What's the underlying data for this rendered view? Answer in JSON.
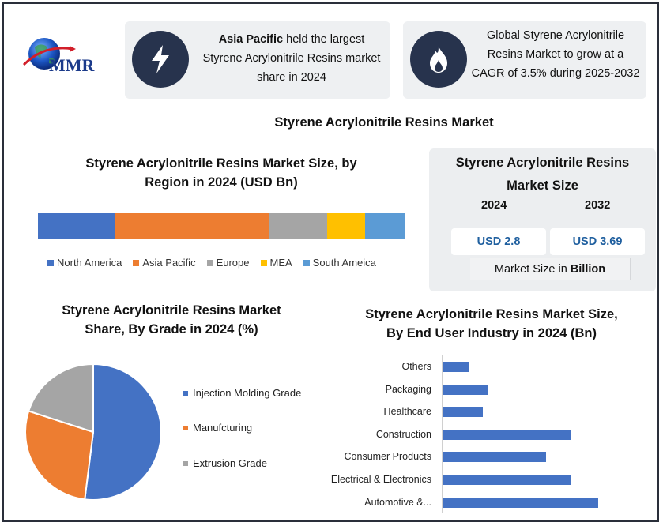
{
  "brand": {
    "logo_text": "MMR"
  },
  "cards": {
    "region_highlight": {
      "bold": "Asia Pacific",
      "rest": " held the largest Styrene Acrylonitrile Resins market share in 2024"
    },
    "cagr": {
      "text": "Global Styrene Acrylonitrile Resins Market to grow at a CAGR of 3.5% during 2025-2032"
    }
  },
  "main_title": "Styrene Acrylonitrile Resins Market",
  "market_size": {
    "title_line1": "Styrene Acrylonitrile Resins",
    "title_line2": "Market Size",
    "year1": "2024",
    "year2": "2032",
    "value1": "USD 2.8",
    "value2": "USD 3.69",
    "unit_prefix": "Market Size in ",
    "unit_bold": "Billion"
  },
  "colors": {
    "blue": "#4472c4",
    "orange": "#ed7d31",
    "gray": "#a5a5a5",
    "yellow": "#ffc000",
    "lightblue": "#5b9bd5",
    "navy": "#27334d"
  },
  "chart_data": [
    {
      "type": "bar",
      "orientation": "horizontal-stacked",
      "title": "Styrene Acrylonitrile Resins Market Size, by Region in 2024 (USD Bn)",
      "series": [
        {
          "name": "North America",
          "value": 0.59,
          "color": "#4472c4"
        },
        {
          "name": "Asia Pacific",
          "value": 1.18,
          "color": "#ed7d31"
        },
        {
          "name": "Europe",
          "value": 0.44,
          "color": "#a5a5a5"
        },
        {
          "name": "MEA",
          "value": 0.29,
          "color": "#ffc000"
        },
        {
          "name": "South Ameica",
          "value": 0.3,
          "color": "#5b9bd5"
        }
      ],
      "legend_position": "bottom"
    },
    {
      "type": "pie",
      "title": "Styrene Acrylonitrile Resins Market Share, By Grade in 2024 (%)",
      "slices": [
        {
          "name": "Injection Molding Grade",
          "value": 52,
          "color": "#4472c4"
        },
        {
          "name": "Manufcturing",
          "value": 28,
          "color": "#ed7d31"
        },
        {
          "name": "Extrusion Grade",
          "value": 20,
          "color": "#a5a5a5"
        }
      ],
      "legend_position": "right"
    },
    {
      "type": "bar",
      "orientation": "horizontal",
      "title": "Styrene Acrylonitrile Resins Market Size, By End User Industry in 2024 (Bn)",
      "categories": [
        "Others",
        "Packaging",
        "Healthcare",
        "Construction",
        "Consumer Products",
        "Electrical & Electronics",
        "Automotive &..."
      ],
      "values": [
        0.2,
        0.35,
        0.31,
        0.99,
        0.8,
        0.99,
        1.2
      ],
      "color": "#4472c4",
      "xlim": [
        0,
        1.4
      ],
      "grid": false
    }
  ]
}
